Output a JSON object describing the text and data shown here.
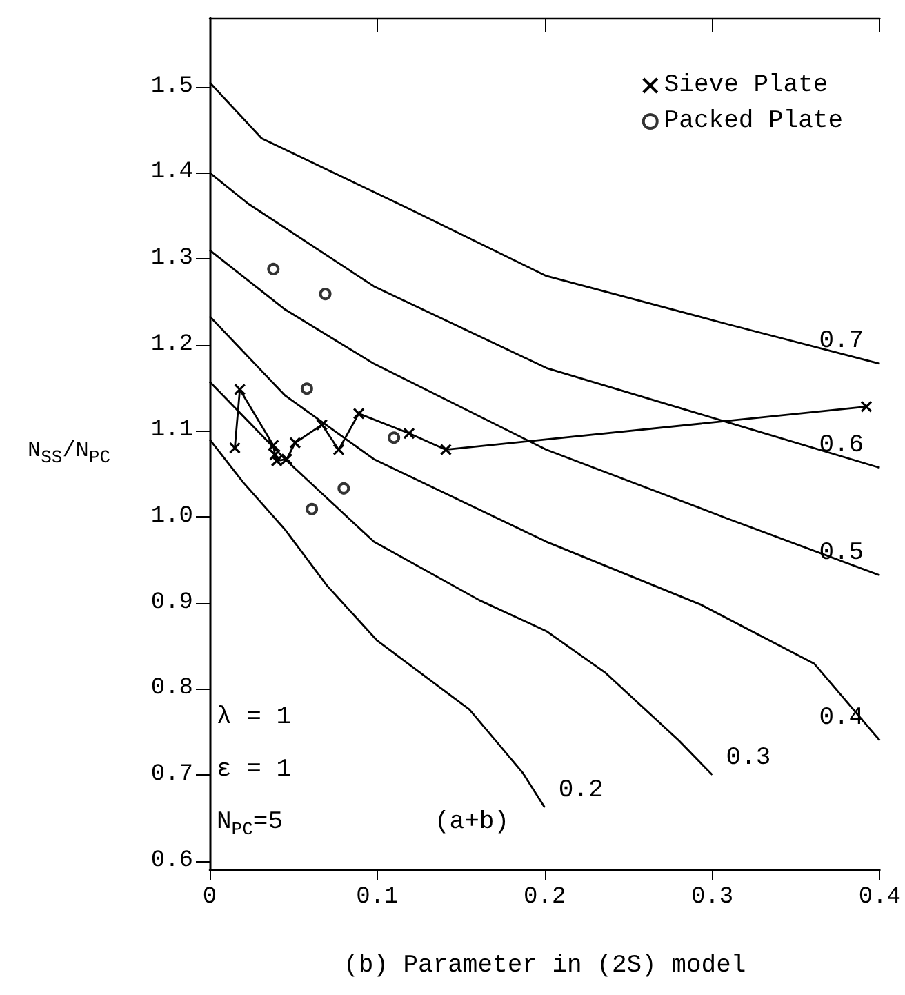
{
  "chart_data": {
    "type": "line",
    "xlabel": "(b) Parameter in (2S) model",
    "ylabel": "N$_{SS}$/N$_{PC}$",
    "xlim": [
      0,
      0.4
    ],
    "ylim": [
      0.59,
      1.58
    ],
    "xticks": [
      0,
      0.1,
      0.2,
      0.3,
      0.4
    ],
    "yticks": [
      0.6,
      0.7,
      0.8,
      0.9,
      {
        "value": 1,
        "label": "1.0"
      },
      1.1,
      1.2,
      1.3,
      1.4,
      1.5
    ],
    "grid": false,
    "legend": "top right",
    "annotations": [
      "λ = 1",
      "ε = 1",
      "N$_{PC}$=5",
      "(a+b)"
    ],
    "series": [
      {
        "name": "0.7",
        "color": "#000000",
        "marker": "none",
        "x": [
          0,
          0.031,
          0.117,
          0.201,
          0.309,
          0.4
        ],
        "values": [
          1.505,
          1.44,
          1.36,
          1.28,
          1.224,
          1.178
        ]
      },
      {
        "name": "0.6",
        "color": "#000000",
        "marker": "none",
        "x": [
          0,
          0.023,
          0.098,
          0.201,
          0.309,
          0.4
        ],
        "values": [
          1.4,
          1.364,
          1.268,
          1.173,
          1.11,
          1.057
        ]
      },
      {
        "name": "0.5",
        "color": "#000000",
        "marker": "none",
        "x": [
          0,
          0.045,
          0.098,
          0.201,
          0.309,
          0.4
        ],
        "values": [
          1.31,
          1.241,
          1.178,
          1.078,
          0.998,
          0.932
        ]
      },
      {
        "name": "0.4",
        "color": "#000000",
        "marker": "none",
        "x": [
          0,
          0.045,
          0.098,
          0.201,
          0.293,
          0.361,
          0.4
        ],
        "values": [
          1.233,
          1.141,
          1.067,
          0.971,
          0.898,
          0.829,
          0.74
        ]
      },
      {
        "name": "0.3",
        "color": "#000000",
        "marker": "none",
        "x": [
          0,
          0.045,
          0.098,
          0.161,
          0.201,
          0.236,
          0.28,
          0.3
        ],
        "values": [
          1.157,
          1.067,
          0.971,
          0.903,
          0.867,
          0.819,
          0.74,
          0.7
        ]
      },
      {
        "name": "0.2",
        "color": "#000000",
        "marker": "none",
        "x": [
          0,
          0.02,
          0.045,
          0.07,
          0.1,
          0.155,
          0.187,
          0.2
        ],
        "values": [
          1.09,
          1.04,
          0.985,
          0.92,
          0.856,
          0.776,
          0.702,
          0.662
        ]
      },
      {
        "name": "Sieve Plate",
        "color": "#000000",
        "marker": "cross",
        "x": [
          0.015,
          0.018,
          0.038,
          0.039,
          0.04,
          0.046,
          0.051,
          0.067,
          0.077,
          0.089,
          0.119,
          0.141,
          0.392
        ],
        "values": [
          1.08,
          1.148,
          1.083,
          1.072,
          1.065,
          1.067,
          1.086,
          1.107,
          1.078,
          1.12,
          1.097,
          1.078,
          1.128
        ]
      },
      {
        "name": "Packed Plate",
        "type": "scatter",
        "color": "#000000",
        "marker": "circle",
        "x": [
          0.038,
          0.069,
          0.058,
          0.11,
          0.08,
          0.061
        ],
        "values": [
          1.288,
          1.259,
          1.149,
          1.092,
          1.033,
          1.009
        ]
      }
    ]
  }
}
